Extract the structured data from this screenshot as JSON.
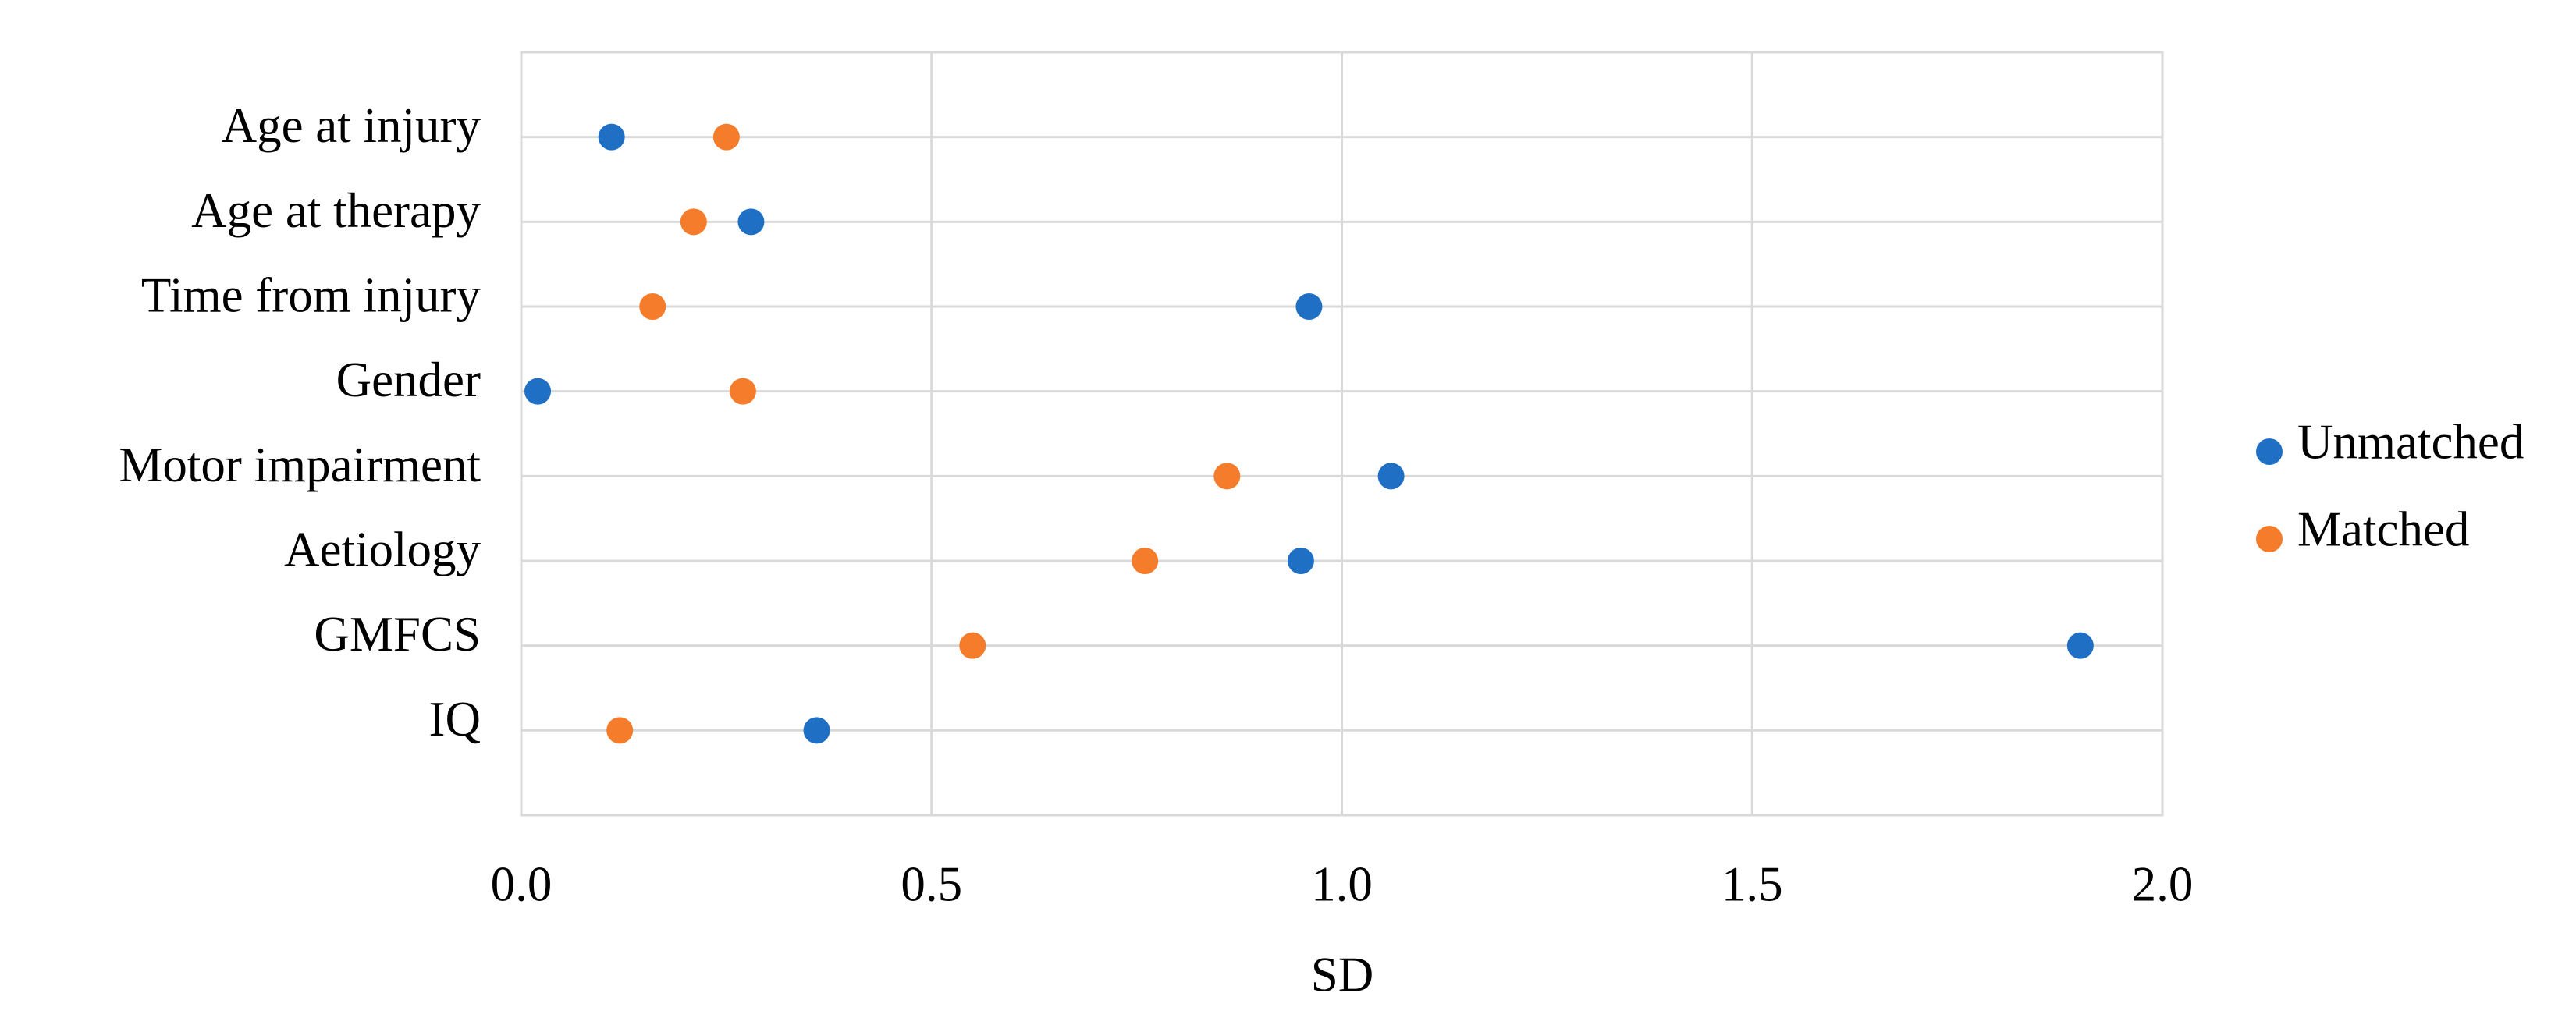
{
  "chart_data": {
    "type": "dot",
    "x_label": "SD",
    "categories": [
      "Age at injury",
      "Age at therapy",
      "Time from injury",
      "Gender",
      "Motor impairment",
      "Aetiology",
      "GMFCS",
      "IQ"
    ],
    "series": [
      {
        "name": "Unmatched",
        "color": "#1f6fc5",
        "values": [
          0.11,
          0.28,
          0.96,
          0.02,
          1.06,
          0.95,
          1.9,
          0.36
        ]
      },
      {
        "name": "Matched",
        "color": "#f57c2b",
        "values": [
          0.25,
          0.21,
          0.16,
          0.27,
          0.86,
          0.76,
          0.55,
          0.12
        ]
      }
    ],
    "xlim": [
      0,
      2
    ],
    "xticks": [
      {
        "value": 0,
        "label": "0.0"
      },
      {
        "value": 0.5,
        "label": "0.5"
      },
      {
        "value": 1,
        "label": "1.0"
      },
      {
        "value": 1.5,
        "label": "1.5"
      },
      {
        "value": 2,
        "label": "2.0"
      }
    ],
    "grid": true,
    "legend": "right"
  }
}
